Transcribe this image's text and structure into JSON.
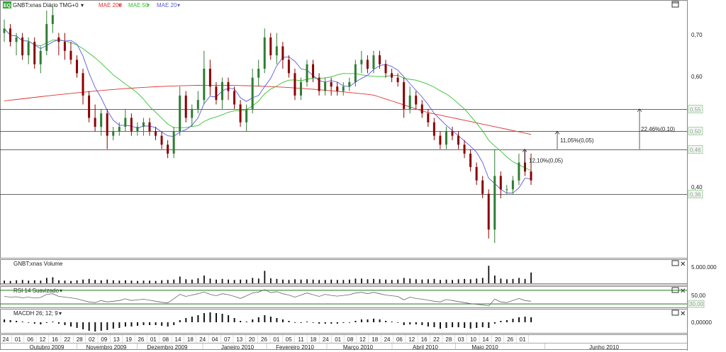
{
  "header": {
    "logo_text": "EQ",
    "symbol": "GNBT:xnas Diário TMG+0",
    "mae200": "MAE 200",
    "mae50": "MAE 50",
    "mae20": "MAE 20"
  },
  "colors": {
    "mae200": "#e03030",
    "mae50": "#33c233",
    "mae20": "#5a5ae0",
    "candle_up": "#2e7d32",
    "candle_down": "#8b0000",
    "rsi_bands": "#1a7a1a"
  },
  "icons": {
    "window": "window-icon",
    "close": "close-icon",
    "dropdown": "chevron-down-icon"
  },
  "chart_data": [
    {
      "type": "candlestick",
      "panel": "price",
      "price_axis_labels": [
        "0,70",
        "0,60",
        "0,40"
      ],
      "ylim": [
        0.22,
        0.77
      ],
      "horizontal_levels": [
        {
          "value": 0.55,
          "label": "0,55"
        },
        {
          "value": 0.5,
          "label": "0,50"
        },
        {
          "value": 0.46,
          "label": "0,46"
        },
        {
          "value": 0.36,
          "label": "0,36"
        }
      ],
      "measurements": [
        {
          "label": "11,05%(0,05)",
          "from": 0.46,
          "to": 0.5
        },
        {
          "label": "22,46%(0,10)",
          "from": 0.46,
          "to": 0.55
        },
        {
          "label": "12,10%(0,05)",
          "from": 0.41,
          "to": 0.46
        }
      ],
      "candles": [
        [
          0.72,
          0.75,
          0.7,
          0.73
        ],
        [
          0.73,
          0.74,
          0.69,
          0.7
        ],
        [
          0.7,
          0.72,
          0.67,
          0.71
        ],
        [
          0.71,
          0.72,
          0.66,
          0.67
        ],
        [
          0.67,
          0.71,
          0.65,
          0.7
        ],
        [
          0.7,
          0.71,
          0.64,
          0.65
        ],
        [
          0.65,
          0.69,
          0.63,
          0.68
        ],
        [
          0.68,
          0.77,
          0.67,
          0.74
        ],
        [
          0.74,
          0.78,
          0.72,
          0.76
        ],
        [
          0.71,
          0.72,
          0.67,
          0.7
        ],
        [
          0.7,
          0.72,
          0.66,
          0.68
        ],
        [
          0.68,
          0.7,
          0.65,
          0.66
        ],
        [
          0.66,
          0.67,
          0.62,
          0.63
        ],
        [
          0.63,
          0.64,
          0.56,
          0.58
        ],
        [
          0.58,
          0.59,
          0.52,
          0.53
        ],
        [
          0.53,
          0.56,
          0.5,
          0.51
        ],
        [
          0.51,
          0.55,
          0.49,
          0.54
        ],
        [
          0.54,
          0.55,
          0.46,
          0.49
        ],
        [
          0.49,
          0.51,
          0.48,
          0.5
        ],
        [
          0.5,
          0.52,
          0.49,
          0.51
        ],
        [
          0.51,
          0.55,
          0.5,
          0.53
        ],
        [
          0.53,
          0.54,
          0.49,
          0.5
        ],
        [
          0.5,
          0.52,
          0.49,
          0.51
        ],
        [
          0.51,
          0.53,
          0.49,
          0.52
        ],
        [
          0.52,
          0.53,
          0.49,
          0.5
        ],
        [
          0.5,
          0.51,
          0.48,
          0.49
        ],
        [
          0.49,
          0.5,
          0.46,
          0.47
        ],
        [
          0.47,
          0.48,
          0.44,
          0.45
        ],
        [
          0.45,
          0.51,
          0.44,
          0.5
        ],
        [
          0.5,
          0.6,
          0.49,
          0.58
        ],
        [
          0.58,
          0.59,
          0.52,
          0.53
        ],
        [
          0.53,
          0.56,
          0.51,
          0.55
        ],
        [
          0.55,
          0.59,
          0.54,
          0.57
        ],
        [
          0.57,
          0.68,
          0.56,
          0.64
        ],
        [
          0.64,
          0.66,
          0.58,
          0.6
        ],
        [
          0.6,
          0.61,
          0.56,
          0.57
        ],
        [
          0.57,
          0.62,
          0.55,
          0.61
        ],
        [
          0.61,
          0.62,
          0.57,
          0.59
        ],
        [
          0.59,
          0.6,
          0.55,
          0.56
        ],
        [
          0.56,
          0.57,
          0.51,
          0.52
        ],
        [
          0.52,
          0.56,
          0.5,
          0.55
        ],
        [
          0.55,
          0.64,
          0.54,
          0.62
        ],
        [
          0.62,
          0.66,
          0.6,
          0.64
        ],
        [
          0.64,
          0.73,
          0.63,
          0.71
        ],
        [
          0.71,
          0.72,
          0.66,
          0.67
        ],
        [
          0.67,
          0.72,
          0.65,
          0.69
        ],
        [
          0.69,
          0.7,
          0.64,
          0.66
        ],
        [
          0.66,
          0.67,
          0.62,
          0.63
        ],
        [
          0.63,
          0.64,
          0.57,
          0.58
        ],
        [
          0.58,
          0.62,
          0.57,
          0.61
        ],
        [
          0.61,
          0.66,
          0.6,
          0.65
        ],
        [
          0.65,
          0.66,
          0.61,
          0.62
        ],
        [
          0.62,
          0.63,
          0.58,
          0.59
        ],
        [
          0.59,
          0.62,
          0.58,
          0.61
        ],
        [
          0.61,
          0.62,
          0.58,
          0.6
        ],
        [
          0.6,
          0.61,
          0.58,
          0.59
        ],
        [
          0.59,
          0.61,
          0.58,
          0.6
        ],
        [
          0.6,
          0.62,
          0.59,
          0.61
        ],
        [
          0.61,
          0.66,
          0.6,
          0.65
        ],
        [
          0.65,
          0.68,
          0.63,
          0.66
        ],
        [
          0.66,
          0.67,
          0.63,
          0.64
        ],
        [
          0.64,
          0.68,
          0.63,
          0.67
        ],
        [
          0.67,
          0.68,
          0.64,
          0.65
        ],
        [
          0.65,
          0.66,
          0.62,
          0.63
        ],
        [
          0.63,
          0.64,
          0.61,
          0.62
        ],
        [
          0.62,
          0.63,
          0.6,
          0.61
        ],
        [
          0.61,
          0.62,
          0.53,
          0.55
        ],
        [
          0.55,
          0.6,
          0.54,
          0.58
        ],
        [
          0.58,
          0.59,
          0.55,
          0.56
        ],
        [
          0.56,
          0.57,
          0.53,
          0.54
        ],
        [
          0.54,
          0.55,
          0.51,
          0.52
        ],
        [
          0.52,
          0.53,
          0.48,
          0.49
        ],
        [
          0.49,
          0.5,
          0.46,
          0.47
        ],
        [
          0.47,
          0.51,
          0.46,
          0.5
        ],
        [
          0.5,
          0.51,
          0.48,
          0.49
        ],
        [
          0.49,
          0.5,
          0.46,
          0.47
        ],
        [
          0.47,
          0.48,
          0.44,
          0.45
        ],
        [
          0.45,
          0.46,
          0.41,
          0.42
        ],
        [
          0.42,
          0.43,
          0.38,
          0.39
        ],
        [
          0.39,
          0.4,
          0.35,
          0.36
        ],
        [
          0.36,
          0.37,
          0.26,
          0.28
        ],
        [
          0.28,
          0.46,
          0.25,
          0.4
        ],
        [
          0.4,
          0.41,
          0.35,
          0.37
        ],
        [
          0.37,
          0.38,
          0.36,
          0.37
        ],
        [
          0.37,
          0.4,
          0.36,
          0.39
        ],
        [
          0.39,
          0.45,
          0.38,
          0.43
        ],
        [
          0.43,
          0.46,
          0.4,
          0.41
        ],
        [
          0.41,
          0.45,
          0.38,
          0.39
        ]
      ]
    },
    {
      "type": "bar",
      "panel": "volume",
      "title": "GNBT:xnas Volume",
      "axis_label": "5.000.000",
      "values": [
        0.8,
        0.7,
        0.9,
        1.0,
        0.8,
        0.9,
        0.8,
        1.6,
        1.8,
        0.9,
        0.8,
        0.7,
        0.9,
        1.1,
        1.3,
        1.0,
        0.9,
        1.1,
        0.9,
        0.8,
        0.9,
        0.8,
        0.7,
        0.8,
        0.8,
        0.7,
        0.9,
        1.0,
        1.1,
        2.0,
        1.2,
        1.1,
        1.5,
        2.3,
        1.4,
        1.1,
        1.3,
        1.1,
        1.0,
        1.1,
        1.1,
        1.6,
        1.4,
        3.7,
        1.5,
        1.3,
        1.1,
        1.0,
        1.2,
        1.1,
        1.2,
        1.1,
        1.0,
        1.0,
        1.1,
        1.0,
        1.0,
        1.1,
        1.4,
        1.4,
        1.2,
        1.3,
        1.2,
        1.1,
        1.0,
        1.1,
        1.6,
        1.4,
        1.2,
        1.1,
        1.2,
        1.3,
        1.0,
        1.1,
        1.0,
        1.2,
        1.3,
        1.2,
        1.4,
        1.6,
        5.2,
        2.3,
        1.4,
        1.2,
        1.3,
        1.6,
        1.3,
        3.2
      ],
      "ylim": [
        0,
        6.3
      ]
    },
    {
      "type": "line",
      "panel": "rsi",
      "title": "RSI 14 Suavizado",
      "axis_labels": [
        "50,00",
        "30,00"
      ],
      "bands": [
        70,
        30
      ],
      "ylim": [
        20,
        80
      ],
      "values": [
        52,
        50,
        51,
        48,
        50,
        47,
        49,
        58,
        60,
        52,
        50,
        48,
        45,
        40,
        36,
        34,
        40,
        36,
        38,
        40,
        45,
        40,
        42,
        44,
        41,
        38,
        35,
        33,
        45,
        58,
        52,
        56,
        60,
        65,
        58,
        54,
        60,
        57,
        52,
        46,
        54,
        62,
        65,
        72,
        63,
        66,
        60,
        56,
        50,
        56,
        62,
        57,
        52,
        58,
        55,
        53,
        55,
        57,
        62,
        64,
        60,
        64,
        60,
        56,
        54,
        52,
        42,
        50,
        46,
        44,
        41,
        38,
        36,
        43,
        40,
        37,
        34,
        31,
        29,
        27,
        24,
        44,
        36,
        34,
        40,
        46,
        40,
        38
      ]
    },
    {
      "type": "bar",
      "panel": "macd",
      "title": "MACDH 26; 12; 9",
      "axis_label": "0,00000",
      "ylim": [
        -0.02,
        0.017
      ],
      "values": [
        0.004,
        0.003,
        0.002,
        0.001,
        0.0,
        -0.002,
        -0.003,
        -0.001,
        0.001,
        -0.002,
        -0.004,
        -0.006,
        -0.008,
        -0.01,
        -0.012,
        -0.013,
        -0.012,
        -0.011,
        -0.009,
        -0.008,
        -0.006,
        -0.006,
        -0.005,
        -0.004,
        -0.004,
        -0.004,
        -0.005,
        -0.006,
        -0.004,
        0.003,
        0.006,
        0.008,
        0.01,
        0.013,
        0.014,
        0.013,
        0.012,
        0.01,
        0.006,
        0.002,
        0.001,
        0.004,
        0.007,
        0.01,
        0.008,
        0.006,
        0.004,
        0.002,
        0.0,
        -0.001,
        0.001,
        0.0,
        -0.002,
        -0.002,
        -0.002,
        -0.002,
        -0.001,
        0.0,
        0.002,
        0.004,
        0.004,
        0.005,
        0.004,
        0.002,
        0.001,
        0.0,
        -0.004,
        -0.003,
        -0.003,
        -0.004,
        -0.006,
        -0.007,
        -0.009,
        -0.008,
        -0.007,
        -0.007,
        -0.008,
        -0.009,
        -0.008,
        -0.007,
        -0.008,
        -0.002,
        0.002,
        0.003,
        0.005,
        0.007,
        0.008,
        0.007
      ]
    }
  ],
  "xaxis": {
    "day_labels": [
      "24",
      "01",
      "06",
      "12",
      "16",
      "22",
      "28",
      "02",
      "09",
      "13",
      "19",
      "26",
      "01",
      "08",
      "14",
      "18",
      "24",
      "04",
      "07",
      "13",
      "20",
      "26",
      "01",
      "05",
      "11",
      "18",
      "24",
      "01",
      "08",
      "12",
      "18",
      "24",
      "06",
      "12",
      "16",
      "22",
      "28",
      "03",
      "10",
      "14",
      "20",
      "26",
      "01"
    ],
    "month_labels": [
      "Outubro 2009",
      "Novembro 2009",
      "Dezembro 2009",
      "Janeiro 2010",
      "Fevereiro 2010",
      "Março 2010",
      "Abril 2010",
      "Maio 2010",
      "Junho 2010"
    ]
  }
}
